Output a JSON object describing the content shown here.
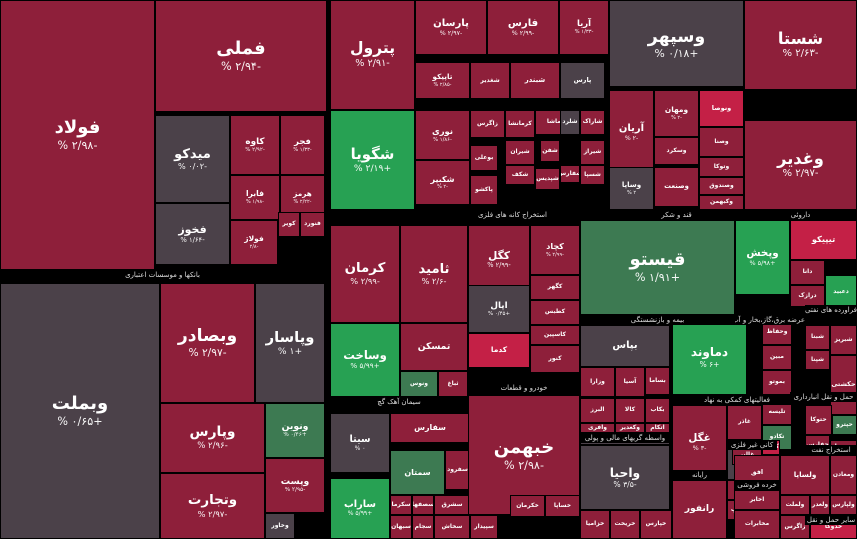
{
  "colors": {
    "up_strong": "#27a153",
    "up": "#3d7a52",
    "neutral": "#4b4149",
    "down": "#8e1f3a",
    "down_strong": "#c42046"
  },
  "chart_data": {
    "type": "treemap",
    "title": "",
    "sectors": [
      {
        "name": "بانکها و موسسات اعتباری",
        "tiles": [
          {
            "name": "فولاد",
            "value": "-۲/۹۸ %",
            "c": "down"
          },
          {
            "name": "فملی",
            "value": "-۲/۹۴ %",
            "c": "down"
          },
          {
            "name": "میدکو",
            "value": "-۰/۰۲ %",
            "c": "neutral"
          },
          {
            "name": "کاوه",
            "value": "-۲/۹۲ %",
            "c": "down"
          },
          {
            "name": "فجر",
            "value": "-۱/۳۳ %",
            "c": "down"
          },
          {
            "name": "فابرا",
            "value": "-۱/۹۸ %",
            "c": "down"
          },
          {
            "name": "هرمز",
            "value": "-۲/۲۲ %",
            "c": "down"
          },
          {
            "name": "فخوز",
            "value": "-۱/۶۴ %",
            "c": "neutral"
          },
          {
            "name": "فولاژ",
            "value": "-۲/۸",
            "c": "down"
          },
          {
            "name": "کویر",
            "value": "",
            "c": "down"
          },
          {
            "name": "فنورد",
            "value": "",
            "c": "down"
          }
        ]
      },
      {
        "name": "",
        "tiles": [
          {
            "name": "وبملت",
            "value": "+۰/۶۵ %",
            "c": "neutral"
          },
          {
            "name": "وبصادر",
            "value": "-۲/۹۷ %",
            "c": "down"
          },
          {
            "name": "وپاسار",
            "value": "+۱ %",
            "c": "neutral"
          },
          {
            "name": "وپارس",
            "value": "-۲/۹۶ %",
            "c": "down"
          },
          {
            "name": "ونوین",
            "value": "+۰/۴۶ %",
            "c": "up"
          },
          {
            "name": "وتجارت",
            "value": "-۲/۹۷ %",
            "c": "down"
          },
          {
            "name": "وپست",
            "value": "-۲/۹۵ %",
            "c": "down"
          },
          {
            "name": "وخاور",
            "value": "",
            "c": "neutral"
          }
        ]
      },
      {
        "name": "انبوه سازی املاک و مستغلات",
        "tiles": [
          {
            "name": "پترول",
            "value": "-۲/۹۱ %",
            "c": "down"
          },
          {
            "name": "شگویا",
            "value": "+۲/۱۹ %",
            "c": "up_strong"
          },
          {
            "name": "پارسان",
            "value": "-۲/۹۷ %",
            "c": "down"
          },
          {
            "name": "فارس",
            "value": "-۲/۹۹ %",
            "c": "down"
          },
          {
            "name": "آریا",
            "value": "-۱/۳۳ %",
            "c": "down"
          },
          {
            "name": "تاپیکو",
            "value": "-۲/۸۵ %",
            "c": "down"
          },
          {
            "name": "شغدیر",
            "value": "",
            "c": "down"
          },
          {
            "name": "شبندر",
            "value": "",
            "c": "down"
          },
          {
            "name": "پارس",
            "value": "",
            "c": "neutral"
          },
          {
            "name": "نوری",
            "value": "-۱/۸۶ %",
            "c": "down"
          },
          {
            "name": "شکبیر",
            "value": "-۲ %",
            "c": "down"
          },
          {
            "name": "زاگرس",
            "value": "",
            "c": "down"
          },
          {
            "name": "کرمانشا",
            "value": "",
            "c": "down"
          },
          {
            "name": "بوعلی",
            "value": "",
            "c": "down"
          },
          {
            "name": "شیران",
            "value": "",
            "c": "down"
          },
          {
            "name": "شاراک",
            "value": "",
            "c": "down"
          },
          {
            "name": "پاکشو",
            "value": "",
            "c": "down"
          },
          {
            "name": "شفن",
            "value": "",
            "c": "down"
          },
          {
            "name": "کرماشا",
            "value": "",
            "c": "down"
          },
          {
            "name": "شپدیس",
            "value": "",
            "c": "down"
          },
          {
            "name": "شکف",
            "value": "",
            "c": "down"
          },
          {
            "name": "شیراز",
            "value": "",
            "c": "down"
          },
          {
            "name": "شلرد",
            "value": "",
            "c": "neutral"
          },
          {
            "name": "شفارس",
            "value": "",
            "c": "down"
          },
          {
            "name": "شسپا",
            "value": "",
            "c": "down"
          }
        ]
      },
      {
        "name": "استخراج کانه های فلزی",
        "tiles": [
          {
            "name": "کرمان",
            "value": "-۲/۹۹ %",
            "c": "down"
          },
          {
            "name": "ثامید",
            "value": "-۲/۶ %",
            "c": "down"
          },
          {
            "name": "وساخت",
            "value": "+۵/۹۹ %",
            "c": "up_strong"
          },
          {
            "name": "تمسکن",
            "value": "",
            "c": "down"
          },
          {
            "name": "ونوس",
            "value": "",
            "c": "up"
          },
          {
            "name": "ثباغ",
            "value": "",
            "c": "down"
          }
        ]
      },
      {
        "name": "قند و شکر",
        "tiles": [
          {
            "name": "وسپهر",
            "value": "+۰/۱۸ %",
            "c": "neutral"
          },
          {
            "name": "آریان",
            "value": "-۲ %",
            "c": "down"
          },
          {
            "name": "ومهان",
            "value": "-۲ %",
            "c": "down"
          },
          {
            "name": "ونوصا",
            "value": "",
            "c": "down_strong"
          },
          {
            "name": "وصنا",
            "value": "",
            "c": "down"
          },
          {
            "name": "وساپا",
            "value": "۲ %",
            "c": "neutral"
          },
          {
            "name": "وسکرد",
            "value": "",
            "c": "down"
          },
          {
            "name": "وتوکا",
            "value": "",
            "c": "down"
          },
          {
            "name": "وصندوق",
            "value": "",
            "c": "down"
          },
          {
            "name": "وصنعت",
            "value": "",
            "c": "down"
          },
          {
            "name": "وکبهمن",
            "value": "",
            "c": "down"
          }
        ]
      },
      {
        "name": "داروئی",
        "tiles": [
          {
            "name": "شستا",
            "value": "-۲/۶۳ %",
            "c": "down"
          },
          {
            "name": "وغدیر",
            "value": "-۲/۹۷ %",
            "c": "down"
          }
        ]
      },
      {
        "name": "خودرو و قطعات",
        "tiles": [
          {
            "name": "کگل",
            "value": "-۲/۹۹ %",
            "c": "down"
          },
          {
            "name": "کچاد",
            "value": "-۲/۹۹ %",
            "c": "down"
          },
          {
            "name": "کگهر",
            "value": "",
            "c": "down"
          },
          {
            "name": "اپال",
            "value": "+۰/۴۵ %",
            "c": "neutral"
          },
          {
            "name": "کدما",
            "value": "",
            "c": "down_strong"
          },
          {
            "name": "کنور",
            "value": "",
            "c": "down"
          },
          {
            "name": "کطبس",
            "value": "",
            "c": "down"
          },
          {
            "name": "کاسپین",
            "value": "",
            "c": "down"
          }
        ]
      },
      {
        "name": "بیمه و بازنشستگی",
        "tiles": [
          {
            "name": "قیستو",
            "value": "+۱/۹۱ %",
            "c": "up"
          }
        ]
      },
      {
        "name": "عرضه برق،گاز،بخار و آب گرم",
        "tiles": [
          {
            "name": "وپخش",
            "value": "+۵/۹۸ %",
            "c": "up_strong"
          },
          {
            "name": "تیپیکو",
            "value": "",
            "c": "down_strong"
          },
          {
            "name": "دانا",
            "value": "",
            "c": "down"
          },
          {
            "name": "درازک",
            "value": "",
            "c": "down"
          },
          {
            "name": "دعبید",
            "value": "",
            "c": "up_strong"
          }
        ]
      },
      {
        "name": "فراورده های نفتی",
        "tiles": [
          {
            "name": "شبنا",
            "value": "",
            "c": "down"
          },
          {
            "name": "شپنا",
            "value": "",
            "c": "down"
          },
          {
            "name": "شبریز",
            "value": "",
            "c": "down"
          }
        ]
      },
      {
        "name": "سیمان آهک گچ",
        "tiles": [
          {
            "name": "سیتا",
            "value": "۰ %",
            "c": "neutral"
          },
          {
            "name": "سفارس",
            "value": "",
            "c": "down"
          },
          {
            "name": "سمتان",
            "value": "",
            "c": "up"
          },
          {
            "name": "سفرود",
            "value": "",
            "c": "down"
          },
          {
            "name": "ساراب",
            "value": "+۵/۹۹ %",
            "c": "up_strong"
          },
          {
            "name": "سکرما",
            "value": "",
            "c": "down"
          },
          {
            "name": "سصفها",
            "value": "",
            "c": "down"
          },
          {
            "name": "سبهان",
            "value": "",
            "c": "down"
          },
          {
            "name": "سجام",
            "value": "",
            "c": "down"
          },
          {
            "name": "سشرق",
            "value": "",
            "c": "down"
          },
          {
            "name": "سخاش",
            "value": "",
            "c": "down"
          },
          {
            "name": "سخزر",
            "value": "",
            "c": "down"
          },
          {
            "name": "سپیدار",
            "value": "",
            "c": "down"
          }
        ]
      },
      {
        "name": "واسطه گریهای مالی و پولی",
        "tiles": [
          {
            "name": "خبهمن",
            "value": "-۲/۹۸ %",
            "c": "down"
          },
          {
            "name": "خکرمان",
            "value": "",
            "c": "down"
          },
          {
            "name": "خساپا",
            "value": "",
            "c": "down"
          },
          {
            "name": "خزامیا",
            "value": "",
            "c": "down"
          },
          {
            "name": "خریخت",
            "value": "",
            "c": "down"
          },
          {
            "name": "خپارس",
            "value": "",
            "c": "down"
          }
        ]
      },
      {
        "name": "فعالیتهای کمکی به نهاد",
        "tiles": [
          {
            "name": "بپاس",
            "value": "",
            "c": "neutral"
          },
          {
            "name": "وزارا",
            "value": "",
            "c": "down"
          },
          {
            "name": "آسیا",
            "value": "",
            "c": "down"
          },
          {
            "name": "بساما",
            "value": "",
            "c": "down"
          },
          {
            "name": "البرز",
            "value": "",
            "c": "down"
          },
          {
            "name": "کالا",
            "value": "",
            "c": "down"
          },
          {
            "name": "بکاب",
            "value": "",
            "c": "down"
          },
          {
            "name": "وآفری",
            "value": "",
            "c": "down"
          },
          {
            "name": "وکغدیر",
            "value": "",
            "c": "down"
          },
          {
            "name": "اتکام",
            "value": "",
            "c": "down"
          },
          {
            "name": "وحکمت",
            "value": "",
            "c": "neutral"
          }
        ]
      },
      {
        "name": "کانی غیر فلزی",
        "tiles": [
          {
            "name": "دماوند",
            "value": "+۶ %",
            "c": "up_strong"
          },
          {
            "name": "غگل",
            "value": "-۳ %",
            "c": "down"
          },
          {
            "name": "غاذر",
            "value": "",
            "c": "down"
          },
          {
            "name": "وامید",
            "value": "",
            "c": "neutral"
          },
          {
            "name": "وحفاظ",
            "value": "",
            "c": "down"
          },
          {
            "name": "مبین",
            "value": "",
            "c": "down"
          },
          {
            "name": "بموتو",
            "value": "",
            "c": "down"
          },
          {
            "name": "امین",
            "value": "",
            "c": "down"
          },
          {
            "name": "تلیسه",
            "value": "",
            "c": "down"
          },
          {
            "name": "تکادو",
            "value": "",
            "c": "up"
          },
          {
            "name": "غالبر",
            "value": "",
            "c": "down"
          }
        ]
      },
      {
        "name": "حمل و نقل انبارداری",
        "tiles": [
          {
            "name": "حکشتی",
            "value": "",
            "c": "down"
          },
          {
            "name": "حتوکا",
            "value": "",
            "c": "down"
          },
          {
            "name": "حپترو",
            "value": "",
            "c": "up"
          },
          {
            "name": "حفارس",
            "value": "",
            "c": "down"
          },
          {
            "name": "حسینا",
            "value": "",
            "c": "down"
          },
          {
            "name": "حآسا",
            "value": "",
            "c": "down"
          }
        ]
      },
      {
        "name": "استخراج نفت",
        "tiles": [
          {
            "name": "ولساپا",
            "value": "",
            "c": "down"
          },
          {
            "name": "ومعادن",
            "value": "",
            "c": "down"
          },
          {
            "name": "ولملت",
            "value": "",
            "c": "down"
          },
          {
            "name": "ولغدر",
            "value": "",
            "c": "down"
          },
          {
            "name": "ولپارس",
            "value": "",
            "c": "down"
          },
          {
            "name": "زاگرس",
            "value": "",
            "c": "down"
          },
          {
            "name": "خدوکا",
            "value": "",
            "c": "down_strong"
          }
        ]
      },
      {
        "name": "رایانه",
        "tiles": [
          {
            "name": "واحیا",
            "value": "-۳/۵ %",
            "c": "neutral"
          },
          {
            "name": "رانفور",
            "value": "",
            "c": "down"
          },
          {
            "name": "سپ",
            "value": "",
            "c": "down"
          },
          {
            "name": "پرسپ",
            "value": "",
            "c": "neutral"
          }
        ]
      },
      {
        "name": "خرده فروشی",
        "tiles": [
          {
            "name": "افق",
            "value": "",
            "c": "down"
          },
          {
            "name": "اخابر",
            "value": "",
            "c": "down"
          },
          {
            "name": "مخابرات",
            "value": "",
            "c": "down"
          },
          {
            "name": "کیافر",
            "value": "",
            "c": "down_strong"
          }
        ]
      }
    ],
    "section_labels": [
      "بانکها و موسسات اعتباری",
      "انبوه سازی املاک و مستغلات",
      "استخراج کانه های فلزی",
      "قند و شکر",
      "داروئی",
      "خودرو و قطعات",
      "بیمه و بازنشستگی",
      "عرضه برق،گاز،بخار و آب گرم",
      "فراورده های نفتی",
      "سیمان آهک گچ",
      "فعالیتهای کمکی به نهاد",
      "واسطه گریهای مالی و پولی",
      "کانی غیر فلزی",
      "حمل و نقل انبارداری",
      "استخراج نفت",
      "رایانه",
      "خرده فروشی",
      "سایر حمل و نقل"
    ]
  }
}
